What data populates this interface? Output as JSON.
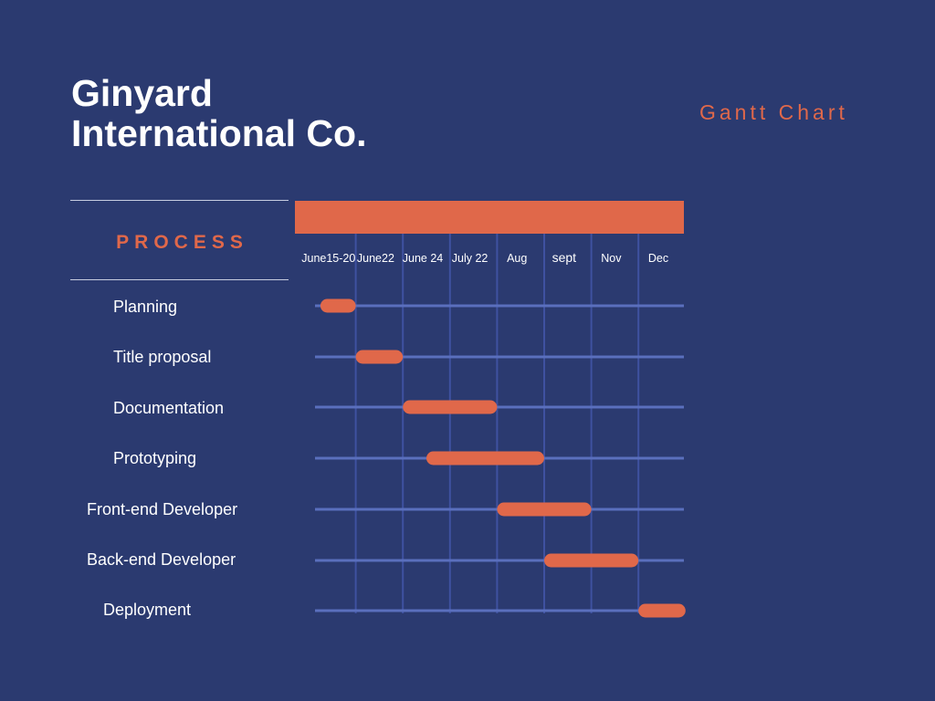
{
  "header": {
    "company_line1": "Ginyard",
    "company_line2": "International Co.",
    "doc_label": "Gantt Chart"
  },
  "process_header": "PROCESS",
  "colors": {
    "background": "#2b3a70",
    "accent": "#e0684a",
    "track": "#5a6fbd",
    "text": "#ffffff"
  },
  "chart_data": {
    "type": "gantt",
    "periods": [
      "June15-20",
      "June22",
      "June 24",
      "July 22",
      "Aug",
      "sept",
      "Nov",
      "Dec"
    ],
    "tasks": [
      {
        "name": "Planning",
        "start": 0.25,
        "end": 1.0
      },
      {
        "name": "Title proposal",
        "start": 1.0,
        "end": 2.0
      },
      {
        "name": "Documentation",
        "start": 2.0,
        "end": 4.0
      },
      {
        "name": "Prototyping",
        "start": 2.5,
        "end": 5.0
      },
      {
        "name": "Front-end Developer",
        "start": 4.0,
        "end": 6.0
      },
      {
        "name": "Back-end Developer",
        "start": 5.0,
        "end": 7.0
      },
      {
        "name": "Deployment",
        "start": 7.0,
        "end": 8.0
      }
    ]
  }
}
